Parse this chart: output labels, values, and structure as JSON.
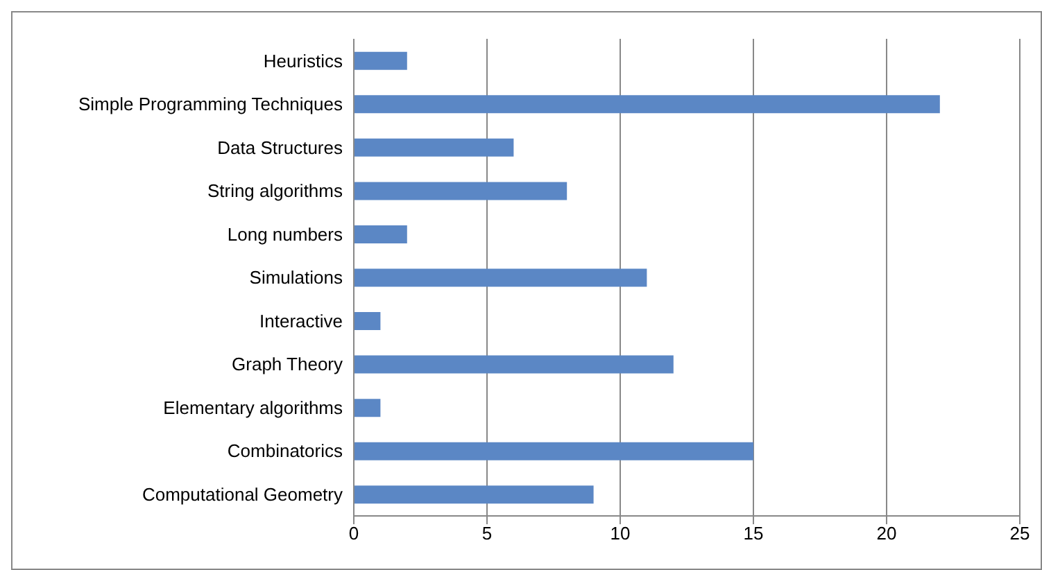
{
  "chart_data": {
    "type": "bar",
    "orientation": "horizontal",
    "categories": [
      "Heuristics",
      "Simple Programming Techniques",
      "Data Structures",
      "String algorithms",
      "Long numbers",
      "Simulations",
      "Interactive",
      "Graph Theory",
      "Elementary algorithms",
      "Combinatorics",
      "Computational Geometry"
    ],
    "values": [
      2,
      22,
      6,
      8,
      2,
      11,
      1,
      12,
      1,
      15,
      9
    ],
    "color": "#5b87c5",
    "xlim": [
      0,
      25
    ],
    "xticks": [
      0,
      5,
      10,
      15,
      20,
      25
    ],
    "grid": "x",
    "legend": false
  }
}
